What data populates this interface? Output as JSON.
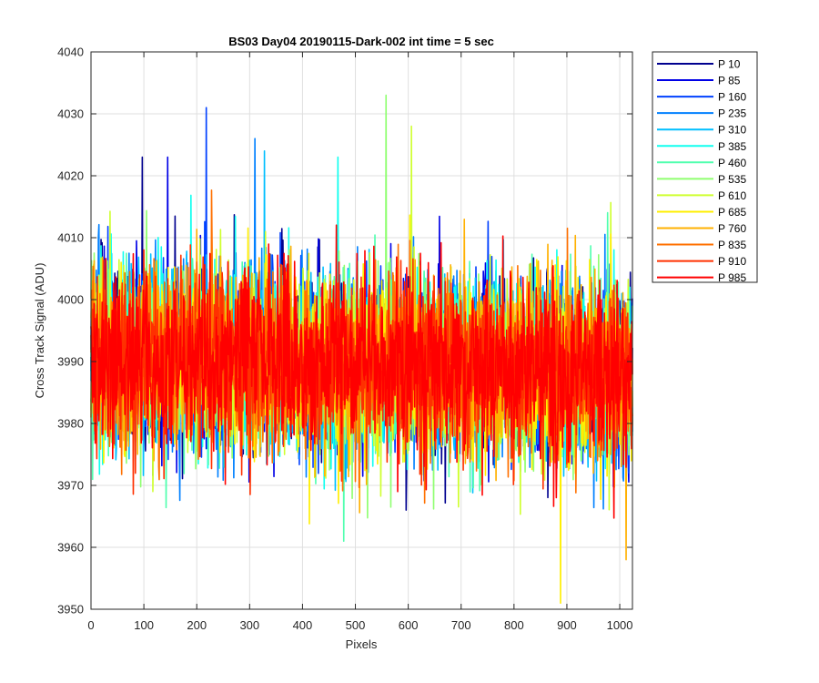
{
  "chart_data": {
    "type": "line",
    "title": "BS03 Day04 20190115-Dark-002 int time = 5 sec",
    "xlabel": "Pixels",
    "ylabel": "Cross Track Signal (ADU)",
    "xlim": [
      0,
      1024
    ],
    "ylim": [
      3950,
      4040
    ],
    "xticks": [
      0,
      100,
      200,
      300,
      400,
      500,
      600,
      700,
      800,
      900,
      1000
    ],
    "yticks": [
      3950,
      3960,
      3970,
      3980,
      3990,
      4000,
      4010,
      4020,
      4030,
      4040
    ],
    "grid": true,
    "legend_position": "outside-right",
    "x_range": [
      0,
      1024
    ],
    "noise_profile": {
      "center_left": 3991,
      "center_right": 3988,
      "typical_min": 3966,
      "typical_max": 4012,
      "max_value": 4033,
      "min_value": 3951
    },
    "notable_values": [
      {
        "x": 97,
        "y": 4023
      },
      {
        "x": 145,
        "y": 4023
      },
      {
        "x": 218,
        "y": 4031
      },
      {
        "x": 310,
        "y": 4026
      },
      {
        "x": 328,
        "y": 4024
      },
      {
        "x": 467,
        "y": 4023
      },
      {
        "x": 478,
        "y": 3961
      },
      {
        "x": 558,
        "y": 4033
      },
      {
        "x": 606,
        "y": 4028
      },
      {
        "x": 888,
        "y": 3951
      },
      {
        "x": 1012,
        "y": 3958
      }
    ],
    "series": [
      {
        "name": "P 10",
        "color": "#00008f"
      },
      {
        "name": "P 85",
        "color": "#0000e6"
      },
      {
        "name": "P 160",
        "color": "#0040ff"
      },
      {
        "name": "P 235",
        "color": "#0080ff"
      },
      {
        "name": "P 310",
        "color": "#00bfff"
      },
      {
        "name": "P 385",
        "color": "#10ffef"
      },
      {
        "name": "P 460",
        "color": "#50ffaf"
      },
      {
        "name": "P 535",
        "color": "#8fff70"
      },
      {
        "name": "P 610",
        "color": "#cfff30"
      },
      {
        "name": "P 685",
        "color": "#ffef00"
      },
      {
        "name": "P 760",
        "color": "#ffb000"
      },
      {
        "name": "P 835",
        "color": "#ff7000"
      },
      {
        "name": "P 910",
        "color": "#ff3000"
      },
      {
        "name": "P 985",
        "color": "#ff0000"
      }
    ]
  }
}
